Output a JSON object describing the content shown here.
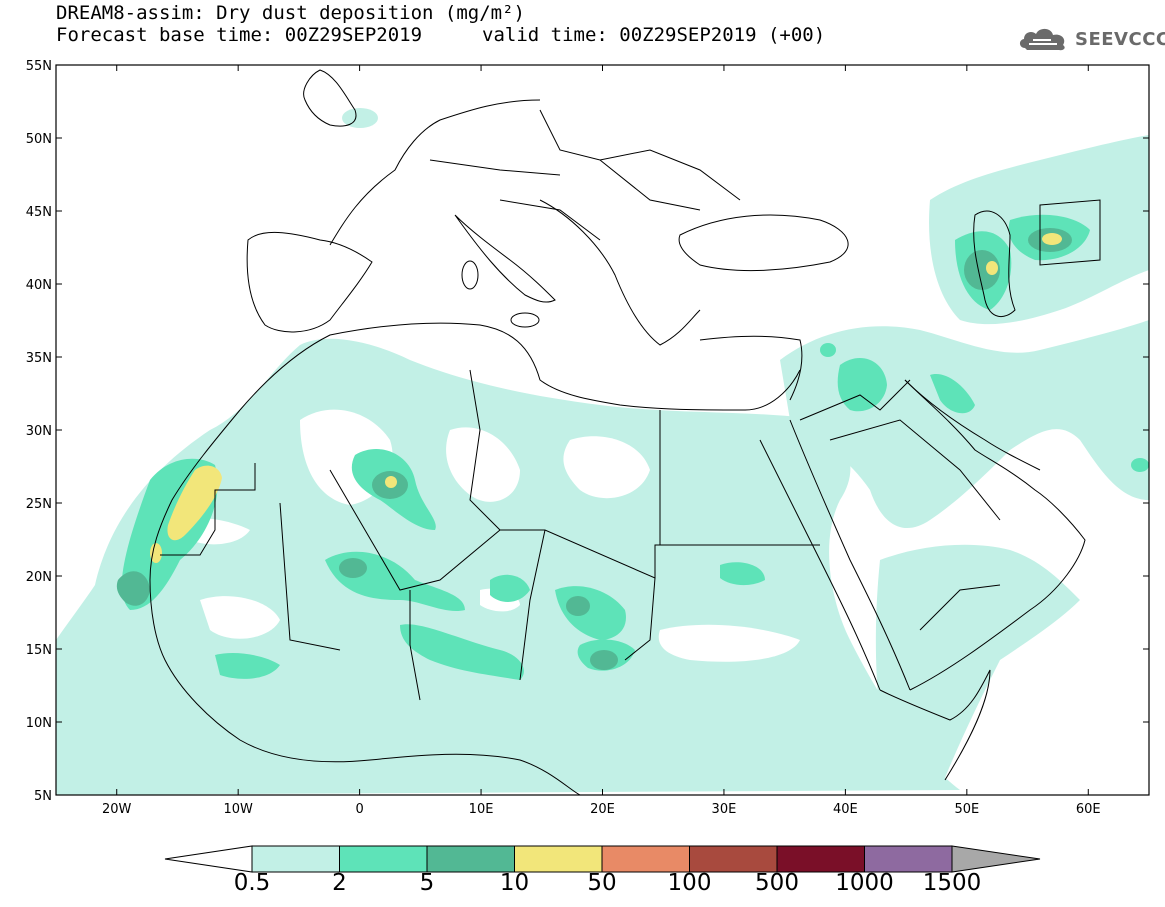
{
  "title": {
    "line1": "DREAM8-assim: Dry dust deposition (mg/m²)",
    "line2": "Forecast base time: 00Z29SEP2019",
    "valid": "valid time: 00Z29SEP2019 (+00)"
  },
  "logo": {
    "text": "SEEVCCC",
    "icon": "cloud-icon"
  },
  "axes": {
    "lon_labels": [
      "20W",
      "10W",
      "0",
      "10E",
      "20E",
      "30E",
      "40E",
      "50E",
      "60E"
    ],
    "lat_labels": [
      "55N",
      "50N",
      "45N",
      "40N",
      "35N",
      "30N",
      "25N",
      "20N",
      "15N",
      "10N",
      "5N"
    ],
    "lon_range": [
      -25,
      65
    ],
    "lat_range": [
      5,
      55
    ]
  },
  "colorbar": {
    "labels": [
      "0.5",
      "2",
      "5",
      "10",
      "50",
      "100",
      "500",
      "1000",
      "1500"
    ],
    "colors": [
      "#c2f0e6",
      "#5ee3b8",
      "#52b894",
      "#f2e67a",
      "#e88a66",
      "#a84a3e",
      "#7a0f28",
      "#8e6aa0",
      "#a8a8a8"
    ]
  }
}
